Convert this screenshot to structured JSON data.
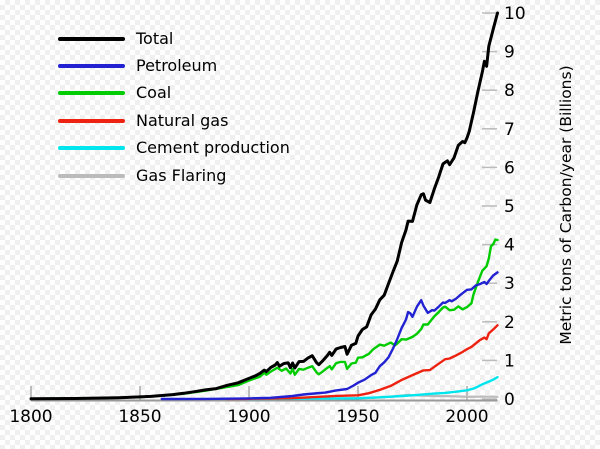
{
  "chart_data": {
    "type": "line",
    "title": "",
    "xlabel": "",
    "ylabel": "Metric tons of Carbon/year (Billions)",
    "x_range": [
      1800,
      2014
    ],
    "y_range": [
      0,
      10
    ],
    "x_ticks": [
      1800,
      1850,
      1900,
      1950,
      2000
    ],
    "y_ticks": [
      0,
      1,
      2,
      3,
      4,
      5,
      6,
      7,
      8,
      9,
      10
    ],
    "grid": false,
    "legend_position": "top-left",
    "axis_color": "#999999",
    "x_tick_color": "#aaaaaa",
    "y_tick_color": "#bbbbbb",
    "draw_order": [
      "Gas Flaring",
      "Cement production",
      "Natural gas",
      "Coal",
      "Petroleum",
      "Total"
    ],
    "series": [
      {
        "name": "Total",
        "color": "#000000",
        "width": 3,
        "points": [
          [
            1800,
            0.008
          ],
          [
            1810,
            0.01
          ],
          [
            1820,
            0.014
          ],
          [
            1830,
            0.024
          ],
          [
            1840,
            0.033
          ],
          [
            1850,
            0.054
          ],
          [
            1855,
            0.068
          ],
          [
            1860,
            0.091
          ],
          [
            1865,
            0.115
          ],
          [
            1870,
            0.147
          ],
          [
            1875,
            0.188
          ],
          [
            1880,
            0.236
          ],
          [
            1885,
            0.27
          ],
          [
            1890,
            0.356
          ],
          [
            1895,
            0.42
          ],
          [
            1900,
            0.534
          ],
          [
            1903,
            0.6
          ],
          [
            1905,
            0.663
          ],
          [
            1907,
            0.75
          ],
          [
            1908,
            0.71
          ],
          [
            1910,
            0.819
          ],
          [
            1912,
            0.88
          ],
          [
            1913,
            0.943
          ],
          [
            1914,
            0.85
          ],
          [
            1916,
            0.92
          ],
          [
            1918,
            0.936
          ],
          [
            1919,
            0.81
          ],
          [
            1920,
            0.932
          ],
          [
            1921,
            0.803
          ],
          [
            1923,
            0.97
          ],
          [
            1925,
            0.975
          ],
          [
            1927,
            1.06
          ],
          [
            1929,
            1.122
          ],
          [
            1931,
            0.94
          ],
          [
            1932,
            0.889
          ],
          [
            1934,
            1.0
          ],
          [
            1936,
            1.13
          ],
          [
            1937,
            1.21
          ],
          [
            1938,
            1.13
          ],
          [
            1940,
            1.299
          ],
          [
            1942,
            1.334
          ],
          [
            1944,
            1.36
          ],
          [
            1945,
            1.16
          ],
          [
            1947,
            1.395
          ],
          [
            1949,
            1.44
          ],
          [
            1950,
            1.63
          ],
          [
            1952,
            1.8
          ],
          [
            1954,
            1.87
          ],
          [
            1956,
            2.18
          ],
          [
            1958,
            2.33
          ],
          [
            1960,
            2.569
          ],
          [
            1962,
            2.69
          ],
          [
            1964,
            2.99
          ],
          [
            1966,
            3.29
          ],
          [
            1968,
            3.57
          ],
          [
            1970,
            4.053
          ],
          [
            1972,
            4.38
          ],
          [
            1973,
            4.61
          ],
          [
            1975,
            4.6
          ],
          [
            1977,
            5.03
          ],
          [
            1979,
            5.29
          ],
          [
            1980,
            5.315
          ],
          [
            1981,
            5.15
          ],
          [
            1983,
            5.09
          ],
          [
            1985,
            5.44
          ],
          [
            1987,
            5.75
          ],
          [
            1989,
            6.09
          ],
          [
            1991,
            6.17
          ],
          [
            1992,
            6.07
          ],
          [
            1994,
            6.24
          ],
          [
            1996,
            6.57
          ],
          [
            1998,
            6.67
          ],
          [
            1999,
            6.64
          ],
          [
            2000,
            6.765
          ],
          [
            2001,
            6.93
          ],
          [
            2003,
            7.42
          ],
          [
            2005,
            7.97
          ],
          [
            2007,
            8.47
          ],
          [
            2008,
            8.75
          ],
          [
            2009,
            8.62
          ],
          [
            2010,
            9.14
          ],
          [
            2012,
            9.58
          ],
          [
            2014,
            10.0
          ]
        ]
      },
      {
        "name": "Petroleum",
        "color": "#2222d2",
        "width": 2.4,
        "points": [
          [
            1860,
            0.001
          ],
          [
            1880,
            0.003
          ],
          [
            1890,
            0.008
          ],
          [
            1900,
            0.016
          ],
          [
            1910,
            0.031
          ],
          [
            1920,
            0.078
          ],
          [
            1925,
            0.116
          ],
          [
            1930,
            0.143
          ],
          [
            1935,
            0.165
          ],
          [
            1940,
            0.224
          ],
          [
            1945,
            0.26
          ],
          [
            1948,
            0.35
          ],
          [
            1950,
            0.423
          ],
          [
            1953,
            0.5
          ],
          [
            1956,
            0.62
          ],
          [
            1958,
            0.68
          ],
          [
            1960,
            0.849
          ],
          [
            1962,
            0.95
          ],
          [
            1964,
            1.08
          ],
          [
            1966,
            1.3
          ],
          [
            1968,
            1.55
          ],
          [
            1970,
            1.838
          ],
          [
            1972,
            2.06
          ],
          [
            1973,
            2.25
          ],
          [
            1974,
            2.22
          ],
          [
            1975,
            2.13
          ],
          [
            1977,
            2.39
          ],
          [
            1979,
            2.56
          ],
          [
            1980,
            2.42
          ],
          [
            1982,
            2.23
          ],
          [
            1984,
            2.3
          ],
          [
            1985,
            2.29
          ],
          [
            1987,
            2.39
          ],
          [
            1989,
            2.5
          ],
          [
            1990,
            2.49
          ],
          [
            1992,
            2.56
          ],
          [
            1993,
            2.53
          ],
          [
            1995,
            2.6
          ],
          [
            1997,
            2.7
          ],
          [
            2000,
            2.83
          ],
          [
            2002,
            2.84
          ],
          [
            2004,
            2.94
          ],
          [
            2006,
            2.98
          ],
          [
            2008,
            3.03
          ],
          [
            2009,
            2.98
          ],
          [
            2010,
            3.06
          ],
          [
            2012,
            3.2
          ],
          [
            2014,
            3.28
          ]
        ]
      },
      {
        "name": "Coal",
        "color": "#00cc00",
        "width": 2.4,
        "points": [
          [
            1800,
            0.008
          ],
          [
            1810,
            0.01
          ],
          [
            1820,
            0.013
          ],
          [
            1830,
            0.022
          ],
          [
            1840,
            0.03
          ],
          [
            1850,
            0.052
          ],
          [
            1860,
            0.086
          ],
          [
            1870,
            0.138
          ],
          [
            1880,
            0.214
          ],
          [
            1890,
            0.31
          ],
          [
            1895,
            0.36
          ],
          [
            1900,
            0.48
          ],
          [
            1903,
            0.54
          ],
          [
            1905,
            0.58
          ],
          [
            1907,
            0.68
          ],
          [
            1908,
            0.63
          ],
          [
            1910,
            0.71
          ],
          [
            1913,
            0.81
          ],
          [
            1915,
            0.73
          ],
          [
            1917,
            0.79
          ],
          [
            1919,
            0.66
          ],
          [
            1920,
            0.78
          ],
          [
            1921,
            0.63
          ],
          [
            1923,
            0.78
          ],
          [
            1925,
            0.76
          ],
          [
            1927,
            0.81
          ],
          [
            1929,
            0.85
          ],
          [
            1931,
            0.69
          ],
          [
            1932,
            0.64
          ],
          [
            1934,
            0.72
          ],
          [
            1936,
            0.81
          ],
          [
            1937,
            0.85
          ],
          [
            1938,
            0.77
          ],
          [
            1940,
            0.93
          ],
          [
            1942,
            0.96
          ],
          [
            1944,
            0.96
          ],
          [
            1945,
            0.78
          ],
          [
            1947,
            0.92
          ],
          [
            1949,
            0.94
          ],
          [
            1950,
            1.07
          ],
          [
            1952,
            1.08
          ],
          [
            1955,
            1.17
          ],
          [
            1957,
            1.29
          ],
          [
            1960,
            1.41
          ],
          [
            1962,
            1.38
          ],
          [
            1965,
            1.46
          ],
          [
            1967,
            1.39
          ],
          [
            1969,
            1.49
          ],
          [
            1970,
            1.55
          ],
          [
            1972,
            1.54
          ],
          [
            1975,
            1.61
          ],
          [
            1977,
            1.69
          ],
          [
            1979,
            1.81
          ],
          [
            1980,
            1.93
          ],
          [
            1982,
            1.93
          ],
          [
            1985,
            2.14
          ],
          [
            1987,
            2.25
          ],
          [
            1989,
            2.37
          ],
          [
            1990,
            2.39
          ],
          [
            1992,
            2.3
          ],
          [
            1994,
            2.31
          ],
          [
            1996,
            2.4
          ],
          [
            1998,
            2.32
          ],
          [
            2000,
            2.38
          ],
          [
            2002,
            2.48
          ],
          [
            2003,
            2.71
          ],
          [
            2005,
            3.03
          ],
          [
            2007,
            3.32
          ],
          [
            2009,
            3.44
          ],
          [
            2010,
            3.64
          ],
          [
            2011,
            3.96
          ],
          [
            2012,
            4.01
          ],
          [
            2013,
            4.13
          ],
          [
            2014,
            4.12
          ]
        ]
      },
      {
        "name": "Natural gas",
        "color": "#ee2211",
        "width": 2.4,
        "points": [
          [
            1890,
            0.003
          ],
          [
            1900,
            0.005
          ],
          [
            1910,
            0.012
          ],
          [
            1920,
            0.021
          ],
          [
            1930,
            0.05
          ],
          [
            1940,
            0.08
          ],
          [
            1950,
            0.097
          ],
          [
            1955,
            0.15
          ],
          [
            1960,
            0.235
          ],
          [
            1965,
            0.34
          ],
          [
            1970,
            0.493
          ],
          [
            1975,
            0.62
          ],
          [
            1980,
            0.74
          ],
          [
            1983,
            0.75
          ],
          [
            1985,
            0.835
          ],
          [
            1990,
            1.03
          ],
          [
            1992,
            1.05
          ],
          [
            1995,
            1.13
          ],
          [
            1998,
            1.22
          ],
          [
            2000,
            1.29
          ],
          [
            2002,
            1.35
          ],
          [
            2004,
            1.44
          ],
          [
            2006,
            1.53
          ],
          [
            2008,
            1.59
          ],
          [
            2009,
            1.55
          ],
          [
            2010,
            1.7
          ],
          [
            2012,
            1.8
          ],
          [
            2014,
            1.91
          ]
        ]
      },
      {
        "name": "Cement production",
        "color": "#00e5ee",
        "width": 2.4,
        "points": [
          [
            1900,
            0.002
          ],
          [
            1920,
            0.006
          ],
          [
            1930,
            0.01
          ],
          [
            1940,
            0.015
          ],
          [
            1950,
            0.018
          ],
          [
            1955,
            0.03
          ],
          [
            1960,
            0.043
          ],
          [
            1965,
            0.059
          ],
          [
            1970,
            0.078
          ],
          [
            1975,
            0.095
          ],
          [
            1980,
            0.12
          ],
          [
            1985,
            0.14
          ],
          [
            1990,
            0.157
          ],
          [
            1995,
            0.19
          ],
          [
            2000,
            0.226
          ],
          [
            2003,
            0.27
          ],
          [
            2005,
            0.32
          ],
          [
            2007,
            0.38
          ],
          [
            2010,
            0.45
          ],
          [
            2012,
            0.5
          ],
          [
            2014,
            0.568
          ]
        ]
      },
      {
        "name": "Gas Flaring",
        "color": "#bbbbbb",
        "width": 2.2,
        "points": [
          [
            1900,
            0.001
          ],
          [
            1920,
            0.003
          ],
          [
            1930,
            0.005
          ],
          [
            1940,
            0.01
          ],
          [
            1950,
            0.023
          ],
          [
            1955,
            0.03
          ],
          [
            1960,
            0.039
          ],
          [
            1965,
            0.06
          ],
          [
            1970,
            0.087
          ],
          [
            1973,
            0.11
          ],
          [
            1975,
            0.095
          ],
          [
            1980,
            0.089
          ],
          [
            1985,
            0.075
          ],
          [
            1990,
            0.075
          ],
          [
            1995,
            0.068
          ],
          [
            2000,
            0.058
          ],
          [
            2005,
            0.06
          ],
          [
            2010,
            0.059
          ],
          [
            2014,
            0.057
          ]
        ]
      }
    ]
  }
}
